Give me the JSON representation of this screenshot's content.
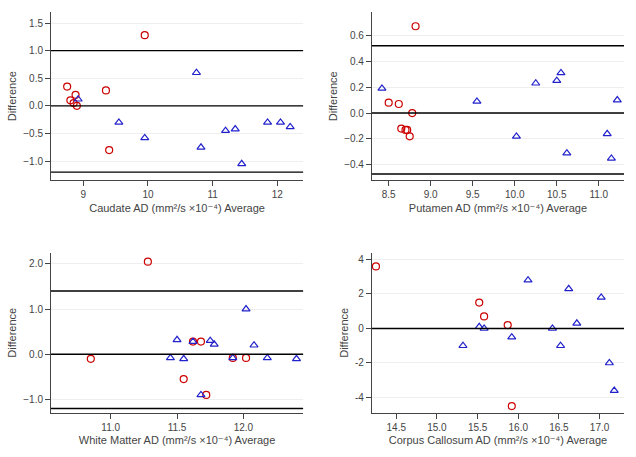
{
  "chart_data": [
    {
      "type": "scatter",
      "xlabel": "Caudate AD (mm²/s ×10⁻⁴) Average",
      "ylabel": "Difference",
      "xlim": [
        8.5,
        12.4
      ],
      "ylim": [
        -1.35,
        1.7
      ],
      "xticks": [
        9,
        10,
        11,
        12
      ],
      "yticks": [
        {
          "value": -1.0,
          "label": "−1.0"
        },
        {
          "value": -0.5,
          "label": "−0.5"
        },
        {
          "value": 0.0,
          "label": "0.0"
        },
        {
          "value": 0.5,
          "label": "0.5"
        },
        {
          "value": 1.0,
          "label": "1.0"
        },
        {
          "value": 1.5,
          "label": "1.5"
        }
      ],
      "grid": "y",
      "series": [
        {
          "type": "hline",
          "color": "black",
          "values": [
            0.0,
            1.0,
            -1.2
          ]
        },
        {
          "type": "scatter",
          "marker": "circle-open",
          "color": "#cc0000",
          "x": [
            8.75,
            8.8,
            8.85,
            8.88,
            8.9,
            9.35,
            9.4,
            9.95
          ],
          "values": [
            0.35,
            0.1,
            0.05,
            0.2,
            0.0,
            0.28,
            -0.8,
            1.28
          ]
        },
        {
          "type": "scatter",
          "marker": "triangle-up-open",
          "color": "#2222cc",
          "x": [
            8.92,
            9.55,
            9.95,
            10.75,
            10.82,
            11.2,
            11.35,
            11.45,
            11.85,
            12.05,
            12.2
          ],
          "values": [
            0.12,
            -0.3,
            -0.58,
            0.6,
            -0.75,
            -0.45,
            -0.42,
            -1.05,
            -0.3,
            -0.3,
            -0.38
          ]
        }
      ]
    },
    {
      "type": "scatter",
      "xlabel": "Putamen AD (mm²/s ×10⁻⁴) Average",
      "ylabel": "Difference",
      "xlim": [
        8.3,
        11.3
      ],
      "ylim": [
        -0.52,
        0.78
      ],
      "xticks": [
        8.5,
        {
          "value": 9.0,
          "label": "9.0"
        },
        9.5,
        {
          "value": 10.0,
          "label": "10.0"
        },
        10.5,
        {
          "value": 11.0,
          "label": "11.0"
        }
      ],
      "yticks": [
        {
          "value": -0.4,
          "label": "−0.4"
        },
        {
          "value": -0.2,
          "label": "−0.2"
        },
        {
          "value": 0.0,
          "label": "0.0"
        },
        0.2,
        0.4,
        0.6
      ],
      "grid": "y",
      "series": [
        {
          "type": "hline",
          "color": "black",
          "values": [
            0.0,
            0.52,
            -0.47
          ]
        },
        {
          "type": "scatter",
          "marker": "circle-open",
          "color": "#cc0000",
          "x": [
            8.5,
            8.62,
            8.65,
            8.7,
            8.72,
            8.75,
            8.78,
            8.82
          ],
          "values": [
            0.08,
            0.07,
            -0.12,
            -0.13,
            -0.13,
            -0.18,
            0.0,
            0.67
          ]
        },
        {
          "type": "scatter",
          "marker": "triangle-up-open",
          "color": "#2222cc",
          "x": [
            8.42,
            9.55,
            10.02,
            10.25,
            10.5,
            10.55,
            10.62,
            11.1,
            11.15,
            11.22
          ],
          "values": [
            0.19,
            0.09,
            -0.18,
            0.23,
            0.25,
            0.31,
            -0.31,
            -0.16,
            -0.35,
            0.1
          ]
        }
      ]
    },
    {
      "type": "scatter",
      "xlabel": "White Matter AD (mm²/s ×10⁻⁴) Average",
      "ylabel": "Difference",
      "xlim": [
        10.55,
        12.45
      ],
      "ylim": [
        -1.3,
        2.25
      ],
      "xticks": [
        {
          "value": 11.0,
          "label": "11.0"
        },
        11.5,
        {
          "value": 12.0,
          "label": "12.0"
        }
      ],
      "yticks": [
        {
          "value": -1.0,
          "label": "−1.0"
        },
        {
          "value": 0.0,
          "label": "0.0"
        },
        {
          "value": 1.0,
          "label": "1.0"
        },
        {
          "value": 2.0,
          "label": "2.0"
        }
      ],
      "grid": "y",
      "series": [
        {
          "type": "hline",
          "color": "black",
          "values": [
            0.0,
            1.4,
            -1.2
          ]
        },
        {
          "type": "scatter",
          "marker": "circle-open",
          "color": "#cc0000",
          "x": [
            10.85,
            11.28,
            11.55,
            11.62,
            11.68,
            11.72,
            11.92,
            12.02
          ],
          "values": [
            -0.1,
            2.05,
            -0.55,
            0.28,
            0.28,
            -0.9,
            -0.08,
            -0.08
          ]
        },
        {
          "type": "scatter",
          "marker": "triangle-up-open",
          "color": "#2222cc",
          "x": [
            11.45,
            11.5,
            11.55,
            11.62,
            11.68,
            11.75,
            11.78,
            11.92,
            12.02,
            12.08,
            12.18,
            12.4
          ],
          "values": [
            -0.08,
            0.32,
            -0.1,
            0.28,
            -0.9,
            0.3,
            0.22,
            -0.08,
            1.0,
            0.2,
            -0.08,
            -0.1
          ]
        }
      ]
    },
    {
      "type": "scatter",
      "xlabel": "Corpus Callosum AD (mm²/s ×10⁻⁴) Average",
      "ylabel": "Difference",
      "xlim": [
        14.2,
        17.3
      ],
      "ylim": [
        -4.9,
        4.4
      ],
      "xticks": [
        14.5,
        {
          "value": 15.0,
          "label": "15.0"
        },
        15.5,
        {
          "value": 16.0,
          "label": "16.0"
        },
        16.5,
        {
          "value": 17.0,
          "label": "17.0"
        }
      ],
      "yticks": [
        -4,
        -2,
        0,
        2,
        4
      ],
      "grid": "y",
      "series": [
        {
          "type": "hline",
          "color": "black",
          "values": [
            0.0
          ]
        },
        {
          "type": "scatter",
          "marker": "circle-open",
          "color": "#cc0000",
          "x": [
            14.25,
            15.52,
            15.58,
            15.87,
            15.92
          ],
          "values": [
            3.6,
            1.5,
            0.7,
            0.2,
            -4.5
          ]
        },
        {
          "type": "scatter",
          "marker": "triangle-up-open",
          "color": "#2222cc",
          "x": [
            15.32,
            15.52,
            15.58,
            15.92,
            16.12,
            16.42,
            16.52,
            16.62,
            16.72,
            17.02,
            17.12,
            17.18
          ],
          "values": [
            -1.0,
            0.1,
            0.0,
            -0.5,
            2.8,
            0.0,
            -1.0,
            2.3,
            0.3,
            1.8,
            -2.0,
            -3.6
          ]
        }
      ]
    }
  ]
}
